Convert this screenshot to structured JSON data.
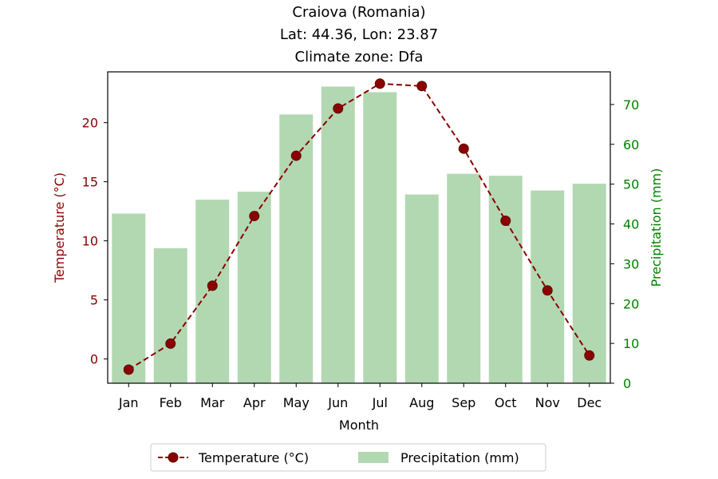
{
  "chart_data": {
    "type": "bar+line",
    "title_lines": [
      "Craiova (Romania)",
      "Lat: 44.36, Lon: 23.87",
      "Climate zone: Dfa"
    ],
    "xlabel": "Month",
    "ylabel_left": "Temperature (°C)",
    "ylabel_right": "Precipitation (mm)",
    "categories": [
      "Jan",
      "Feb",
      "Mar",
      "Apr",
      "May",
      "Jun",
      "Jul",
      "Aug",
      "Sep",
      "Oct",
      "Nov",
      "Dec"
    ],
    "series": [
      {
        "name": "Temperature (°C)",
        "type": "line",
        "axis": "left",
        "values": [
          -0.9,
          1.3,
          6.2,
          12.1,
          17.2,
          21.2,
          23.3,
          23.1,
          17.8,
          11.7,
          5.8,
          0.3
        ]
      },
      {
        "name": "Precipitation (mm)",
        "type": "bar",
        "axis": "right",
        "values": [
          42.6,
          33.9,
          46.1,
          48.1,
          67.5,
          74.5,
          73.1,
          47.4,
          52.6,
          52.1,
          48.4,
          50.1
        ]
      }
    ],
    "ylim_left": [
      -2.05,
      24.3
    ],
    "ylim_right": [
      0,
      78.2
    ],
    "yticks_left": [
      0,
      5,
      10,
      15,
      20
    ],
    "yticks_right": [
      0,
      10,
      20,
      30,
      40,
      50,
      60,
      70
    ],
    "grid": false,
    "legend_position": "bottom-center",
    "colors": {
      "temperature": "#8b0000",
      "temperature_marker_edge": "#5a1000",
      "precipitation": "#b2d8b2",
      "left_axis_text": "#8b0000",
      "right_axis_text": "#008000"
    }
  }
}
